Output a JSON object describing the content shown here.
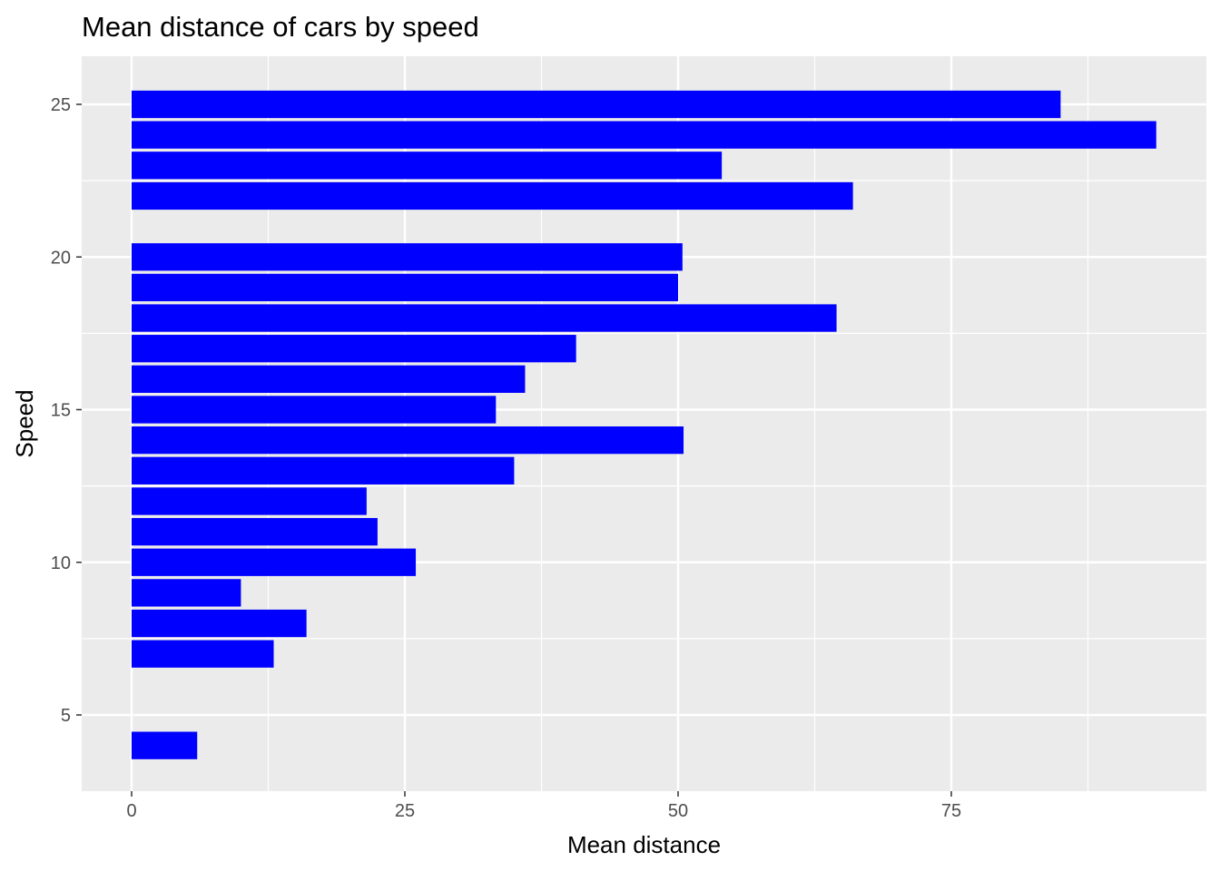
{
  "chart_data": {
    "type": "bar",
    "orientation": "horizontal",
    "title": "Mean distance of cars by speed",
    "xlabel": "Mean distance",
    "ylabel": "Speed",
    "xlim": [
      0,
      93
    ],
    "ylim": [
      2.5,
      26.5
    ],
    "x_ticks": [
      0,
      25,
      50,
      75
    ],
    "y_ticks": [
      5,
      10,
      15,
      20,
      25
    ],
    "grid": true,
    "legend": "none",
    "bar_color": "#0000FF",
    "panel_background": "#EBEBEB",
    "grid_color": "#FFFFFF",
    "categories": [
      4,
      7,
      8,
      9,
      10,
      11,
      12,
      13,
      14,
      15,
      16,
      17,
      18,
      19,
      20,
      22,
      23,
      24,
      25
    ],
    "values": [
      6,
      13,
      16,
      10,
      26,
      22.5,
      21.5,
      35,
      50.5,
      33.33,
      36,
      40.67,
      64.5,
      50,
      50.4,
      66,
      54,
      93.75,
      85
    ]
  }
}
